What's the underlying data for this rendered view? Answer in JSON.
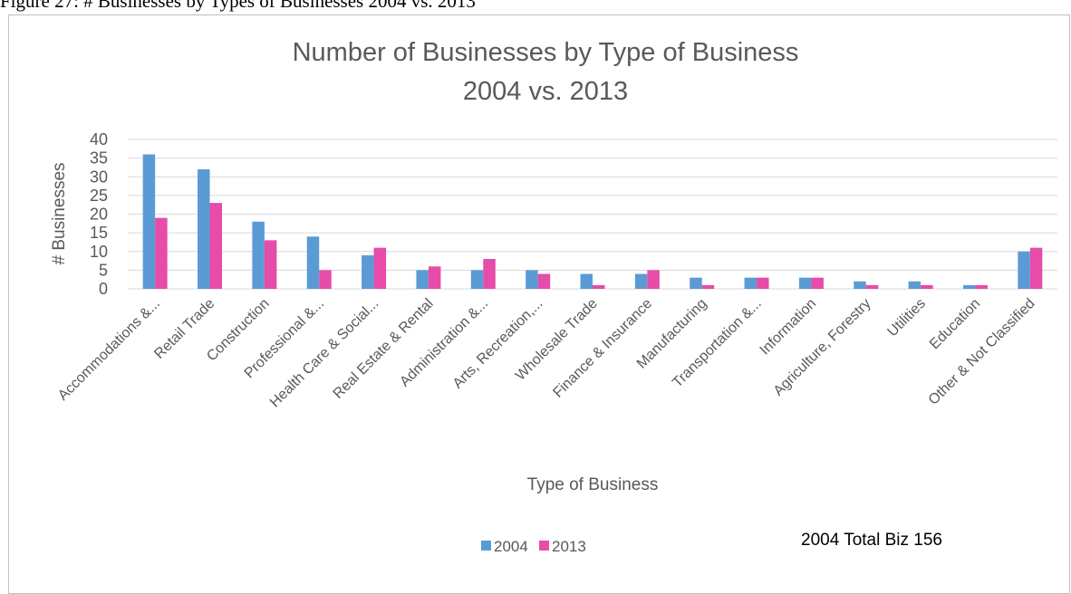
{
  "caption": "Figure 27: # Businesses by Types of Businesses 2004 vs. 2013",
  "annotation": "2004 Total Biz 156",
  "colors": {
    "2004": "#5b9bd5",
    "2013": "#e64ca8",
    "grid": "#d9d9d9",
    "text": "#595959"
  },
  "chart_data": {
    "type": "bar",
    "title": [
      "Number of Businesses by Type of Business",
      "2004 vs. 2013"
    ],
    "xlabel": "Type of Business",
    "ylabel": "# Businesses",
    "ylim": [
      0,
      40
    ],
    "yticks": [
      0,
      5,
      10,
      15,
      20,
      25,
      30,
      35,
      40
    ],
    "grid": true,
    "legend_position": "bottom",
    "categories": [
      "Accommodations &...",
      "Retail Trade",
      "Construction",
      "Professional &...",
      "Health Care & Social...",
      "Real Estate & Rental",
      "Administration &...",
      "Arts, Recreation,...",
      "Wholesale Trade",
      "Finance & Insurance",
      "Manufacturing",
      "Transportation &...",
      "Information",
      "Agriculture, Forestry",
      "Utilities",
      "Education",
      "Other & Not Classified"
    ],
    "series": [
      {
        "name": "2004",
        "values": [
          36,
          32,
          18,
          14,
          9,
          5,
          5,
          5,
          4,
          4,
          3,
          3,
          3,
          2,
          2,
          1,
          10
        ]
      },
      {
        "name": "2013",
        "values": [
          19,
          23,
          13,
          5,
          11,
          6,
          8,
          4,
          1,
          5,
          1,
          3,
          3,
          1,
          1,
          1,
          11
        ]
      }
    ]
  }
}
